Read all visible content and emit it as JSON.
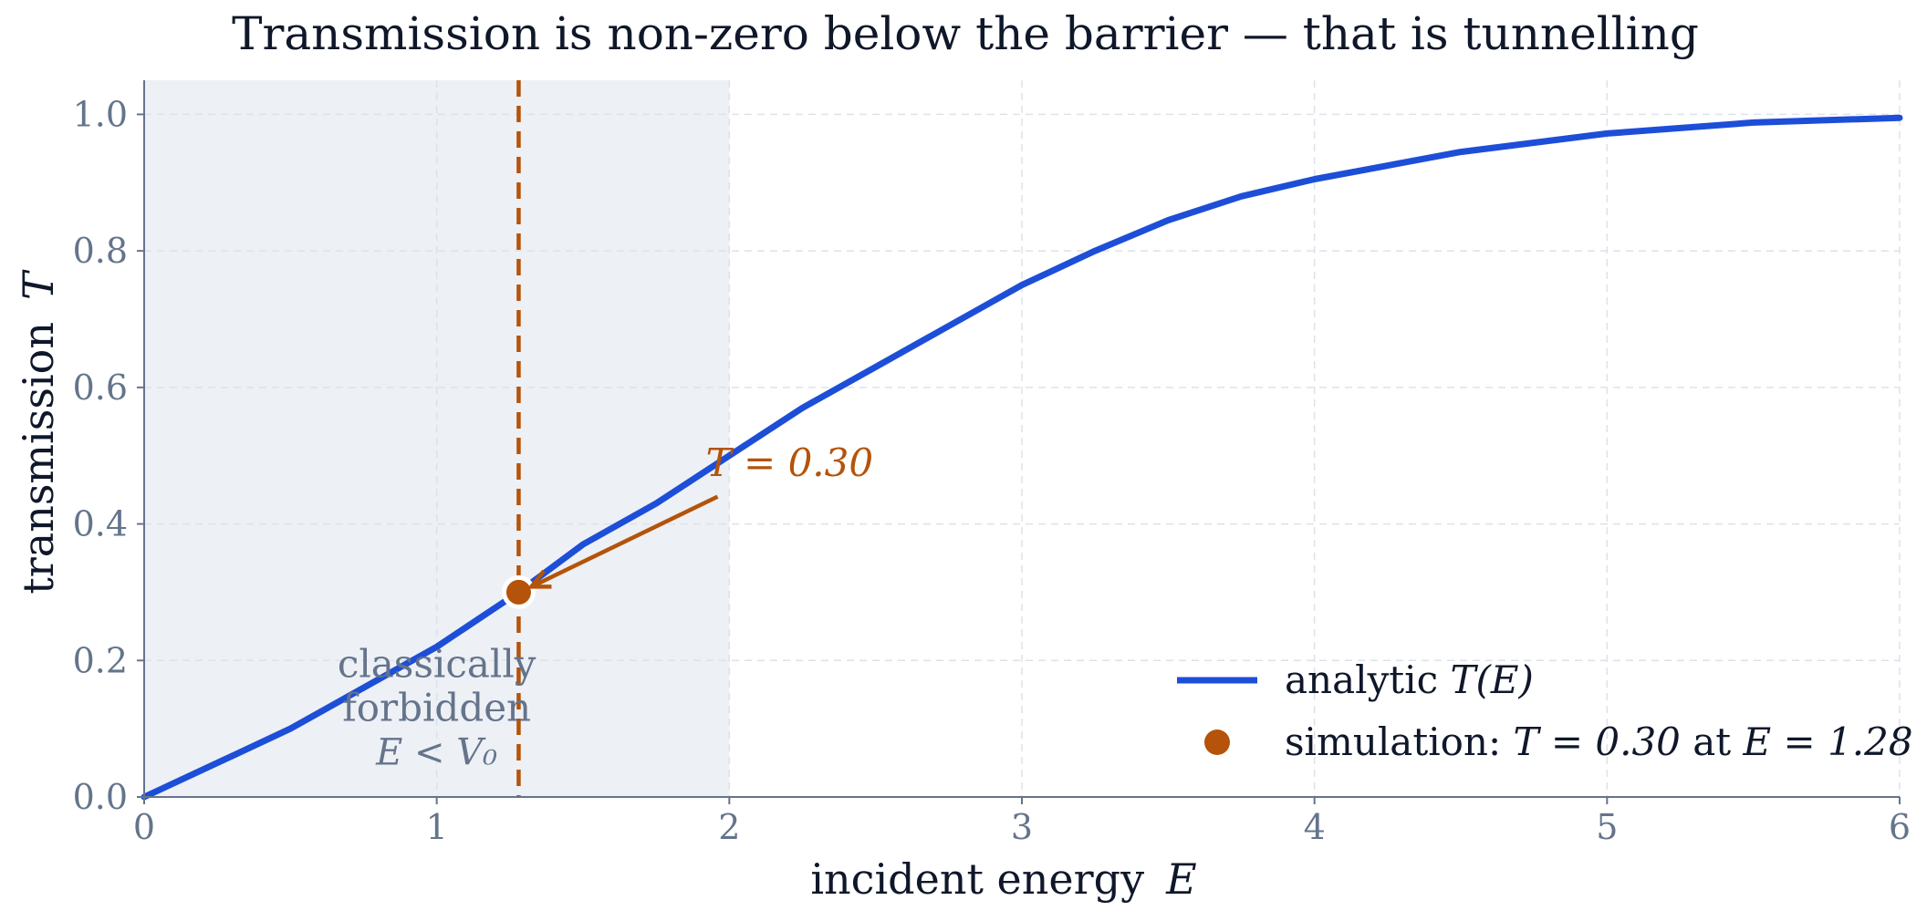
{
  "chart_data": {
    "type": "line",
    "title": "Transmission is non-zero below the barrier — that is tunnelling",
    "xlabel": "incident energy",
    "xlabel_symbol": "E",
    "ylabel": "transmission",
    "ylabel_symbol": "T",
    "xlim": [
      0,
      6
    ],
    "ylim": [
      0,
      1.05
    ],
    "xticks": [
      0,
      1,
      2,
      3,
      4,
      5,
      6
    ],
    "yticks": [
      "0.0",
      "0.2",
      "0.4",
      "0.6",
      "0.8",
      "1.0"
    ],
    "grid": true,
    "legend_position": "bottom-right",
    "series": [
      {
        "name": "analytic T(E)",
        "kind": "line",
        "color": "#1d4ed8",
        "x": [
          0,
          0.25,
          0.5,
          0.75,
          1.0,
          1.28,
          1.5,
          1.75,
          2.0,
          2.25,
          2.5,
          2.75,
          3.0,
          3.25,
          3.5,
          3.75,
          4.0,
          4.5,
          5.0,
          5.5,
          6.0
        ],
        "y": [
          0.0,
          0.05,
          0.1,
          0.16,
          0.22,
          0.3,
          0.37,
          0.43,
          0.5,
          0.57,
          0.63,
          0.69,
          0.75,
          0.8,
          0.845,
          0.88,
          0.905,
          0.945,
          0.972,
          0.988,
          0.995
        ]
      },
      {
        "name": "simulation: T = 0.30 at E = 1.28",
        "kind": "point",
        "color": "#b45309",
        "x": [
          1.28
        ],
        "y": [
          0.3
        ]
      }
    ],
    "shaded_region": {
      "x_from": 0,
      "x_to": 2,
      "color": "#edf0f5",
      "label_line1": "classically",
      "label_line2": "forbidden",
      "label_math": "E < V₀"
    },
    "vline": {
      "x": 1.28,
      "color": "#b45309",
      "style": "dashed"
    },
    "annotation": {
      "text": "T = 0.30",
      "color": "#b45309"
    },
    "legend": [
      {
        "marker": "line",
        "text_prefix": "analytic ",
        "text_math": "T(E)",
        "color": "#1d4ed8"
      },
      {
        "marker": "dot",
        "text_prefix": "simulation:  ",
        "text_math": "T = 0.30",
        "text_mid": " at ",
        "text_math2": "E = 1.28",
        "color": "#b45309"
      }
    ]
  }
}
